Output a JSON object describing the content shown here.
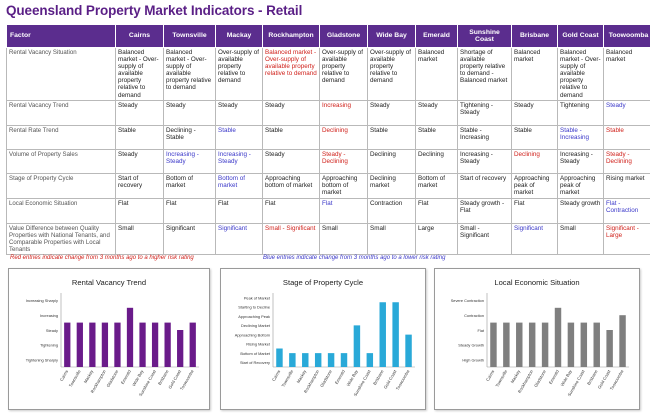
{
  "title": "Queensland Property Market Indicators - Retail",
  "table": {
    "factor_header": "Factor",
    "columns": [
      "Cairns",
      "Townsville",
      "Mackay",
      "Rockhampton",
      "Gladstone",
      "Wide Bay",
      "Emerald",
      "Sunshine Coast",
      "Brisbane",
      "Gold Coast",
      "Toowoomba"
    ],
    "rows": [
      {
        "factor": "Rental Vacancy Situation",
        "cells": [
          {
            "t": "Balanced market - Over-supply of available property relative to demand",
            "c": ""
          },
          {
            "t": "Balanced market - Over-supply of available property relative to demand",
            "c": ""
          },
          {
            "t": "Over-supply of available property relative to demand",
            "c": ""
          },
          {
            "t": "Balanced market - Over-supply of available property relative to demand",
            "c": "red"
          },
          {
            "t": "Over-supply of available property relative to demand",
            "c": ""
          },
          {
            "t": "Over-supply of available property relative to demand",
            "c": ""
          },
          {
            "t": "Balanced market",
            "c": ""
          },
          {
            "t": "Shortage of available property relative to demand - Balanced market",
            "c": ""
          },
          {
            "t": "Balanced market",
            "c": ""
          },
          {
            "t": "Balanced market - Over-supply of available property relative to demand",
            "c": ""
          },
          {
            "t": "Balanced market",
            "c": ""
          }
        ]
      },
      {
        "factor": "Rental Vacancy Trend",
        "cells": [
          {
            "t": "Steady",
            "c": ""
          },
          {
            "t": "Steady",
            "c": ""
          },
          {
            "t": "Steady",
            "c": ""
          },
          {
            "t": "Steady",
            "c": ""
          },
          {
            "t": "Increasing",
            "c": "red"
          },
          {
            "t": "Steady",
            "c": ""
          },
          {
            "t": "Steady",
            "c": ""
          },
          {
            "t": "Tightening - Steady",
            "c": ""
          },
          {
            "t": "Steady",
            "c": ""
          },
          {
            "t": "Tightening",
            "c": ""
          },
          {
            "t": "Steady",
            "c": "blue"
          }
        ]
      },
      {
        "factor": "Rental Rate Trend",
        "cells": [
          {
            "t": "Stable",
            "c": ""
          },
          {
            "t": "Declining - Stable",
            "c": ""
          },
          {
            "t": "Stable",
            "c": "blue"
          },
          {
            "t": "Stable",
            "c": ""
          },
          {
            "t": "Declining",
            "c": "red"
          },
          {
            "t": "Stable",
            "c": ""
          },
          {
            "t": "Stable",
            "c": ""
          },
          {
            "t": "Stable - Increasing",
            "c": ""
          },
          {
            "t": "Stable",
            "c": ""
          },
          {
            "t": "Stable - Increasing",
            "c": "blue"
          },
          {
            "t": "Stable",
            "c": "red"
          }
        ]
      },
      {
        "factor": "Volume of Property Sales",
        "cells": [
          {
            "t": "Steady",
            "c": ""
          },
          {
            "t": "Increasing - Steady",
            "c": "blue"
          },
          {
            "t": "Increasing - Steady",
            "c": "blue"
          },
          {
            "t": "Steady",
            "c": ""
          },
          {
            "t": "Steady - Declining",
            "c": "red"
          },
          {
            "t": "Declining",
            "c": ""
          },
          {
            "t": "Declining",
            "c": ""
          },
          {
            "t": "Increasing - Steady",
            "c": ""
          },
          {
            "t": "Declining",
            "c": "red"
          },
          {
            "t": "Increasing - Steady",
            "c": ""
          },
          {
            "t": "Steady - Declining",
            "c": "red"
          }
        ]
      },
      {
        "factor": "Stage of Property Cycle",
        "cells": [
          {
            "t": "Start of recovery",
            "c": ""
          },
          {
            "t": "Bottom of market",
            "c": ""
          },
          {
            "t": "Bottom of market",
            "c": "blue"
          },
          {
            "t": "Approaching bottom of market",
            "c": ""
          },
          {
            "t": "Approaching bottom of market",
            "c": ""
          },
          {
            "t": "Declining market",
            "c": ""
          },
          {
            "t": "Bottom of market",
            "c": ""
          },
          {
            "t": "Start of recovery",
            "c": ""
          },
          {
            "t": "Approaching peak of market",
            "c": ""
          },
          {
            "t": "Approaching peak of market",
            "c": ""
          },
          {
            "t": "Rising market",
            "c": ""
          }
        ]
      },
      {
        "factor": "Local Economic Situation",
        "cells": [
          {
            "t": "Flat",
            "c": ""
          },
          {
            "t": "Flat",
            "c": ""
          },
          {
            "t": "Flat",
            "c": ""
          },
          {
            "t": "Flat",
            "c": ""
          },
          {
            "t": "Flat",
            "c": "blue"
          },
          {
            "t": "Contraction",
            "c": ""
          },
          {
            "t": "Flat",
            "c": ""
          },
          {
            "t": "Steady growth - Flat",
            "c": ""
          },
          {
            "t": "Flat",
            "c": ""
          },
          {
            "t": "Steady growth",
            "c": ""
          },
          {
            "t": "Flat - Contraction",
            "c": "blue"
          }
        ]
      },
      {
        "factor": "Value Difference between Quality Properties with National Tenants, and Comparable Properties with Local Tenants",
        "cells": [
          {
            "t": "Small",
            "c": ""
          },
          {
            "t": "Significant",
            "c": ""
          },
          {
            "t": "Significant",
            "c": "blue"
          },
          {
            "t": "Small - Significant",
            "c": "red"
          },
          {
            "t": "Small",
            "c": ""
          },
          {
            "t": "Small",
            "c": ""
          },
          {
            "t": "Large",
            "c": ""
          },
          {
            "t": "Small - Significant",
            "c": ""
          },
          {
            "t": "Significant",
            "c": "blue"
          },
          {
            "t": "Small",
            "c": ""
          },
          {
            "t": "Significant - Large",
            "c": "red"
          }
        ]
      }
    ]
  },
  "legend": {
    "red_note": "Red entries indicate change from 3 months ago to a higher risk rating",
    "blue_note": "Blue entries indicate change from 3 months ago to a lower risk rating"
  },
  "colors": {
    "header": "#5b2d8e",
    "red": "#d0211b",
    "blue": "#3a37c9",
    "chart1": "#6a1b8a",
    "chart2": "#29a9d8",
    "chart3": "#7f7f7f"
  },
  "chart_data": [
    {
      "type": "bar",
      "title": "Rental Vacancy Trend",
      "categories": [
        "Cairns",
        "Townsville",
        "Mackay",
        "Rockhampton",
        "Gladstone",
        "Emerald",
        "Wide Bay",
        "Sunshine Coast",
        "Brisbane",
        "Gold Coast",
        "Toowoomba"
      ],
      "yticks": [
        "Increasing Sharply",
        "Increasing",
        "Steady",
        "Tightening",
        "Tightening Sharply"
      ],
      "values": [
        3,
        3,
        3,
        3,
        3,
        4,
        3,
        3,
        3,
        2.5,
        3
      ],
      "ylim": [
        0,
        5
      ]
    },
    {
      "type": "bar",
      "title": "Stage of Property Cycle",
      "categories": [
        "Cairns",
        "Townsville",
        "Mackay",
        "Rockhampton",
        "Gladstone",
        "Emerald",
        "Wide Bay",
        "Sunshine Coast",
        "Brisbane",
        "Gold Coast",
        "Toowoomba"
      ],
      "yticks": [
        "Peak of Market",
        "Starting to Decline",
        "Approaching Peak",
        "Declining Market",
        "Approaching Bottom",
        "Rising Market",
        "Bottom of Market",
        "Start of Recovery"
      ],
      "values": [
        2,
        1.5,
        1.5,
        1.5,
        1.5,
        1.5,
        4.5,
        1.5,
        7,
        7,
        3.5
      ],
      "ylim": [
        0,
        8
      ]
    },
    {
      "type": "bar",
      "title": "Local Economic Situation",
      "categories": [
        "Cairns",
        "Townsville",
        "Mackay",
        "Rockhampton",
        "Gladstone",
        "Emerald",
        "Wide Bay",
        "Sunshine Coast",
        "Brisbane",
        "Gold Coast",
        "Toowoomba"
      ],
      "yticks": [
        "Severe Contraction",
        "Contraction",
        "Flat",
        "Steady Growth",
        "High Growth"
      ],
      "values": [
        3,
        3,
        3,
        3,
        3,
        4,
        3,
        3,
        3,
        2.5,
        3.5
      ],
      "ylim": [
        0,
        5
      ]
    }
  ]
}
